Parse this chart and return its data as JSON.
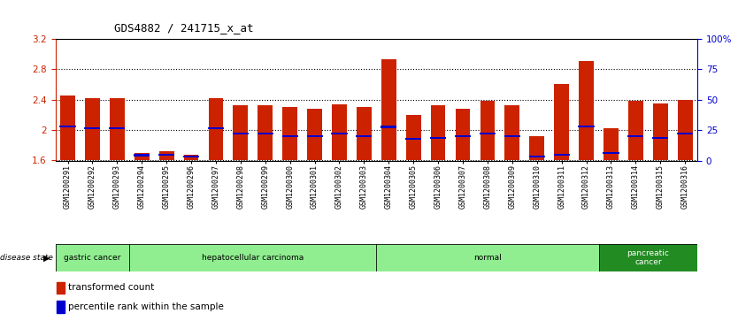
{
  "title": "GDS4882 / 241715_x_at",
  "samples": [
    "GSM1200291",
    "GSM1200292",
    "GSM1200293",
    "GSM1200294",
    "GSM1200295",
    "GSM1200296",
    "GSM1200297",
    "GSM1200298",
    "GSM1200299",
    "GSM1200300",
    "GSM1200301",
    "GSM1200302",
    "GSM1200303",
    "GSM1200304",
    "GSM1200305",
    "GSM1200306",
    "GSM1200307",
    "GSM1200308",
    "GSM1200309",
    "GSM1200310",
    "GSM1200311",
    "GSM1200312",
    "GSM1200313",
    "GSM1200314",
    "GSM1200315",
    "GSM1200316"
  ],
  "transformed_count": [
    2.45,
    2.42,
    2.42,
    1.7,
    1.72,
    1.67,
    2.42,
    2.32,
    2.32,
    2.3,
    2.28,
    2.34,
    2.3,
    2.93,
    2.2,
    2.32,
    2.28,
    2.38,
    2.32,
    1.92,
    2.6,
    2.9,
    2.02,
    2.38,
    2.35,
    2.4
  ],
  "percentile_rank": [
    2.05,
    2.02,
    2.02,
    1.67,
    1.68,
    1.65,
    2.02,
    1.95,
    1.95,
    1.92,
    1.92,
    1.95,
    1.92,
    2.04,
    1.88,
    1.9,
    1.92,
    1.95,
    1.92,
    1.65,
    1.68,
    2.05,
    1.7,
    1.92,
    1.9,
    1.95
  ],
  "disease_groups": [
    {
      "label": "gastric cancer",
      "start": 0,
      "end": 2
    },
    {
      "label": "hepatocellular carcinoma",
      "start": 3,
      "end": 12
    },
    {
      "label": "normal",
      "start": 13,
      "end": 21
    },
    {
      "label": "pancreatic\ncancer",
      "start": 22,
      "end": 25
    }
  ],
  "group_light_color": "#90EE90",
  "group_dark_color": "#228B22",
  "bar_color": "#CC2200",
  "dot_color": "#0000CC",
  "ylim_left": [
    1.6,
    3.2
  ],
  "ylim_right": [
    0,
    100
  ],
  "yticks_left": [
    1.6,
    2.0,
    2.4,
    2.8,
    3.2
  ],
  "ytick_labels_left": [
    "1.6",
    "2",
    "2.4",
    "2.8",
    "3.2"
  ],
  "yticks_right": [
    0,
    25,
    50,
    75,
    100
  ],
  "ytick_labels_right": [
    "0",
    "25",
    "50",
    "75",
    "100%"
  ],
  "left_axis_color": "#CC2200",
  "right_axis_color": "#0000CC"
}
